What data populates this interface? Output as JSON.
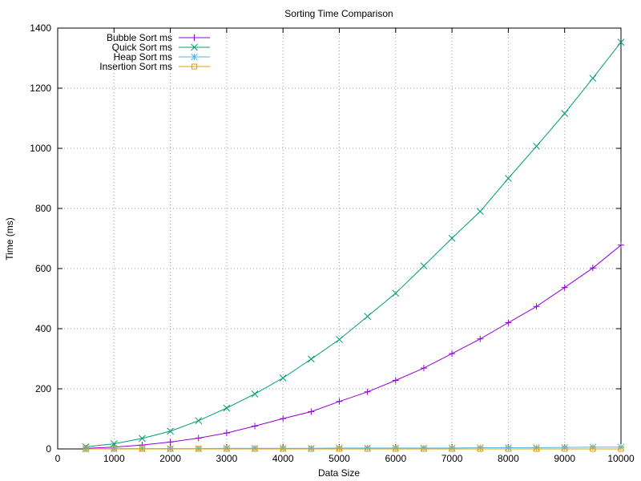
{
  "chart_data": {
    "type": "line",
    "title": "Sorting Time Comparison",
    "xlabel": "Data Size",
    "ylabel": "Time (ms)",
    "xlim": [
      0,
      10000
    ],
    "ylim": [
      0,
      1400
    ],
    "x_ticks": [
      0,
      1000,
      2000,
      3000,
      4000,
      5000,
      6000,
      7000,
      8000,
      9000,
      10000
    ],
    "y_ticks": [
      0,
      200,
      400,
      600,
      800,
      1000,
      1200,
      1400
    ],
    "grid": true,
    "legend_position": "top-left",
    "x": [
      500,
      1000,
      1500,
      2000,
      2500,
      3000,
      3500,
      4000,
      4500,
      5000,
      5500,
      6000,
      6500,
      7000,
      7500,
      8000,
      8500,
      9000,
      9500,
      10000
    ],
    "series": [
      {
        "name": "Bubble Sort ms",
        "color": "#9400d3",
        "marker": "plus",
        "values": [
          2,
          6,
          13,
          23,
          36,
          53,
          76,
          101,
          124,
          158,
          190,
          228,
          269,
          317,
          366,
          420,
          474,
          537,
          602,
          678
        ]
      },
      {
        "name": "Quick Sort ms",
        "color": "#009e73",
        "marker": "cross",
        "values": [
          7,
          17,
          35,
          59,
          94,
          136,
          183,
          236,
          299,
          364,
          441,
          518,
          609,
          701,
          790,
          900,
          1007,
          1116,
          1233,
          1353
        ]
      },
      {
        "name": "Heap Sort ms",
        "color": "#56b4e9",
        "marker": "star",
        "values": [
          0,
          1,
          1,
          1,
          1,
          2,
          2,
          2,
          2,
          3,
          3,
          3,
          3,
          3,
          4,
          4,
          4,
          5,
          6,
          6
        ]
      },
      {
        "name": "Insertion Sort ms",
        "color": "#e69f00",
        "marker": "square",
        "values": [
          0,
          0,
          0,
          0,
          0,
          0,
          0,
          0,
          0,
          0,
          0,
          0,
          0,
          0,
          0,
          0,
          0,
          0,
          0,
          0
        ]
      }
    ]
  }
}
